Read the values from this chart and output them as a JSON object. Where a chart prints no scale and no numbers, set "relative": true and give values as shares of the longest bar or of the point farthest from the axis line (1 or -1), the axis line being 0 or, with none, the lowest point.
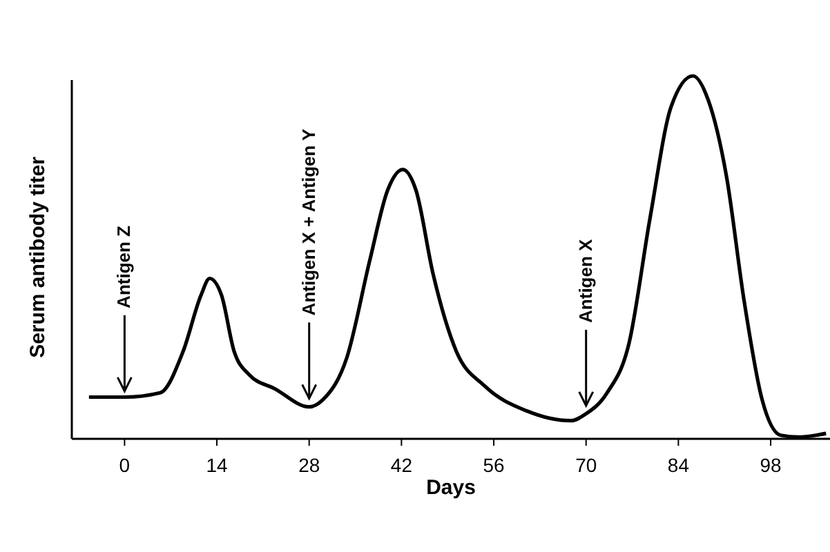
{
  "chart_data": {
    "type": "line",
    "relative": true,
    "xlabel": "Days",
    "ylabel": "Serum antibody titer",
    "xlim": [
      -8,
      107
    ],
    "xticks": [
      0,
      14,
      28,
      42,
      56,
      70,
      84,
      98
    ],
    "grid": false,
    "marker": "none",
    "line_style": "solid",
    "series": [
      {
        "color": "#000000",
        "x": [
          -5.4,
          0,
          5.4,
          8.9,
          11.6,
          12.9,
          14.7,
          16.6,
          18.9,
          22.8,
          28,
          30.1,
          33.7,
          37.2,
          39.9,
          42.2,
          44.2,
          46.8,
          50.3,
          54.6,
          61,
          67.7,
          70,
          73.2,
          76.5,
          79.7,
          82.9,
          86.2,
          88.5,
          91.3,
          94,
          96.7,
          99.5,
          102.2,
          104.9,
          106.4
        ],
        "values": [
          0.115,
          0.115,
          0.127,
          0.242,
          0.396,
          0.442,
          0.396,
          0.242,
          0.177,
          0.138,
          0.088,
          0.108,
          0.223,
          0.492,
          0.685,
          0.742,
          0.685,
          0.454,
          0.242,
          0.146,
          0.077,
          0.05,
          0.069,
          0.127,
          0.262,
          0.608,
          0.915,
          1,
          0.935,
          0.723,
          0.377,
          0.108,
          0.01,
          0.005,
          0.01,
          0.015
        ]
      }
    ],
    "annotations": [
      {
        "text": "Antigen Z",
        "x": 0,
        "y": 0.12
      },
      {
        "text": "Antigen X + Antigen Y",
        "x": 28,
        "y": 0.1
      },
      {
        "text": "Antigen X",
        "x": 70,
        "y": 0.08
      }
    ]
  }
}
